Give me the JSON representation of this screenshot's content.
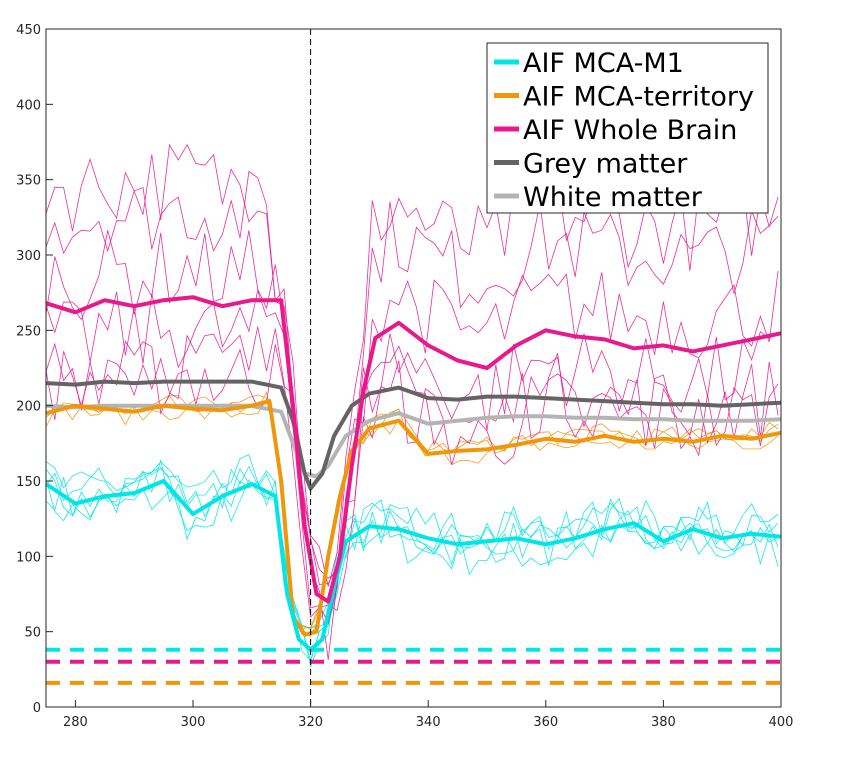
{
  "chart_data": {
    "type": "line",
    "xlim": [
      275,
      400
    ],
    "ylim": [
      0,
      450
    ],
    "x_ticks": [
      280,
      300,
      320,
      340,
      360,
      380,
      400
    ],
    "y_ticks": [
      0,
      50,
      100,
      150,
      200,
      250,
      300,
      350,
      400,
      450
    ],
    "grid": false,
    "legend_position": "top-right",
    "vline_x": 320,
    "colors": {
      "aif_mca_m1": "#00e5e5",
      "aif_mca_territory": "#f0960a",
      "aif_whole_brain": "#e8198c",
      "grey_matter": "#646464",
      "white_matter": "#b4b4b4"
    },
    "series": [
      {
        "name": "AIF MCA-M1",
        "key": "aif_mca_m1",
        "x": [
          275,
          280,
          285,
          290,
          295,
          300,
          305,
          310,
          314,
          316,
          318,
          320,
          322,
          324,
          326,
          330,
          335,
          340,
          345,
          350,
          355,
          360,
          365,
          370,
          375,
          380,
          385,
          390,
          395,
          400
        ],
        "values": [
          148,
          135,
          140,
          142,
          150,
          128,
          140,
          148,
          140,
          75,
          45,
          38,
          45,
          80,
          110,
          120,
          118,
          112,
          108,
          110,
          112,
          108,
          112,
          118,
          122,
          110,
          118,
          112,
          115,
          113
        ]
      },
      {
        "name": "AIF MCA-territory",
        "key": "aif_mca_territory",
        "x": [
          275,
          280,
          285,
          290,
          295,
          300,
          305,
          310,
          313,
          315,
          317,
          319,
          321,
          323,
          325,
          327,
          330,
          335,
          340,
          345,
          350,
          355,
          360,
          365,
          370,
          375,
          380,
          385,
          390,
          395,
          400
        ],
        "values": [
          195,
          200,
          198,
          196,
          200,
          198,
          197,
          200,
          203,
          150,
          60,
          48,
          50,
          100,
          140,
          170,
          185,
          190,
          168,
          170,
          171,
          174,
          178,
          176,
          180,
          176,
          178,
          176,
          180,
          178,
          182
        ]
      },
      {
        "name": "AIF Whole Brain",
        "key": "aif_whole_brain",
        "x": [
          275,
          280,
          285,
          290,
          295,
          300,
          305,
          310,
          315,
          317,
          319,
          321,
          323,
          325,
          327,
          329,
          331,
          335,
          340,
          345,
          350,
          355,
          360,
          365,
          370,
          375,
          380,
          385,
          390,
          395,
          400
        ],
        "values": [
          268,
          262,
          270,
          266,
          270,
          272,
          266,
          270,
          270,
          200,
          120,
          75,
          70,
          100,
          160,
          210,
          245,
          255,
          240,
          230,
          225,
          240,
          250,
          246,
          244,
          238,
          240,
          236,
          240,
          244,
          248
        ]
      },
      {
        "name": "Grey matter",
        "key": "grey_matter",
        "x": [
          275,
          280,
          285,
          290,
          295,
          300,
          305,
          310,
          315,
          317,
          319,
          320,
          322,
          324,
          327,
          330,
          335,
          340,
          345,
          350,
          355,
          360,
          365,
          370,
          375,
          380,
          385,
          390,
          395,
          400
        ],
        "values": [
          215,
          214,
          216,
          215,
          216,
          216,
          216,
          216,
          212,
          190,
          155,
          145,
          155,
          180,
          200,
          208,
          212,
          205,
          204,
          206,
          206,
          205,
          204,
          203,
          202,
          201,
          201,
          200,
          201,
          202
        ]
      },
      {
        "name": "White matter",
        "key": "white_matter",
        "x": [
          275,
          280,
          285,
          290,
          295,
          300,
          305,
          310,
          315,
          317,
          319,
          321,
          323,
          326,
          330,
          335,
          340,
          345,
          350,
          355,
          360,
          365,
          370,
          375,
          380,
          385,
          390,
          395,
          400
        ],
        "values": [
          200,
          199,
          200,
          200,
          200,
          200,
          200,
          200,
          196,
          175,
          155,
          153,
          160,
          180,
          190,
          195,
          188,
          190,
          192,
          193,
          193,
          192,
          192,
          191,
          191,
          190,
          190,
          190,
          191
        ]
      }
    ],
    "thresholds": [
      {
        "key": "aif_mca_m1",
        "y": 38
      },
      {
        "key": "aif_whole_brain",
        "y": 30
      },
      {
        "key": "aif_mca_territory",
        "y": 16
      }
    ]
  }
}
